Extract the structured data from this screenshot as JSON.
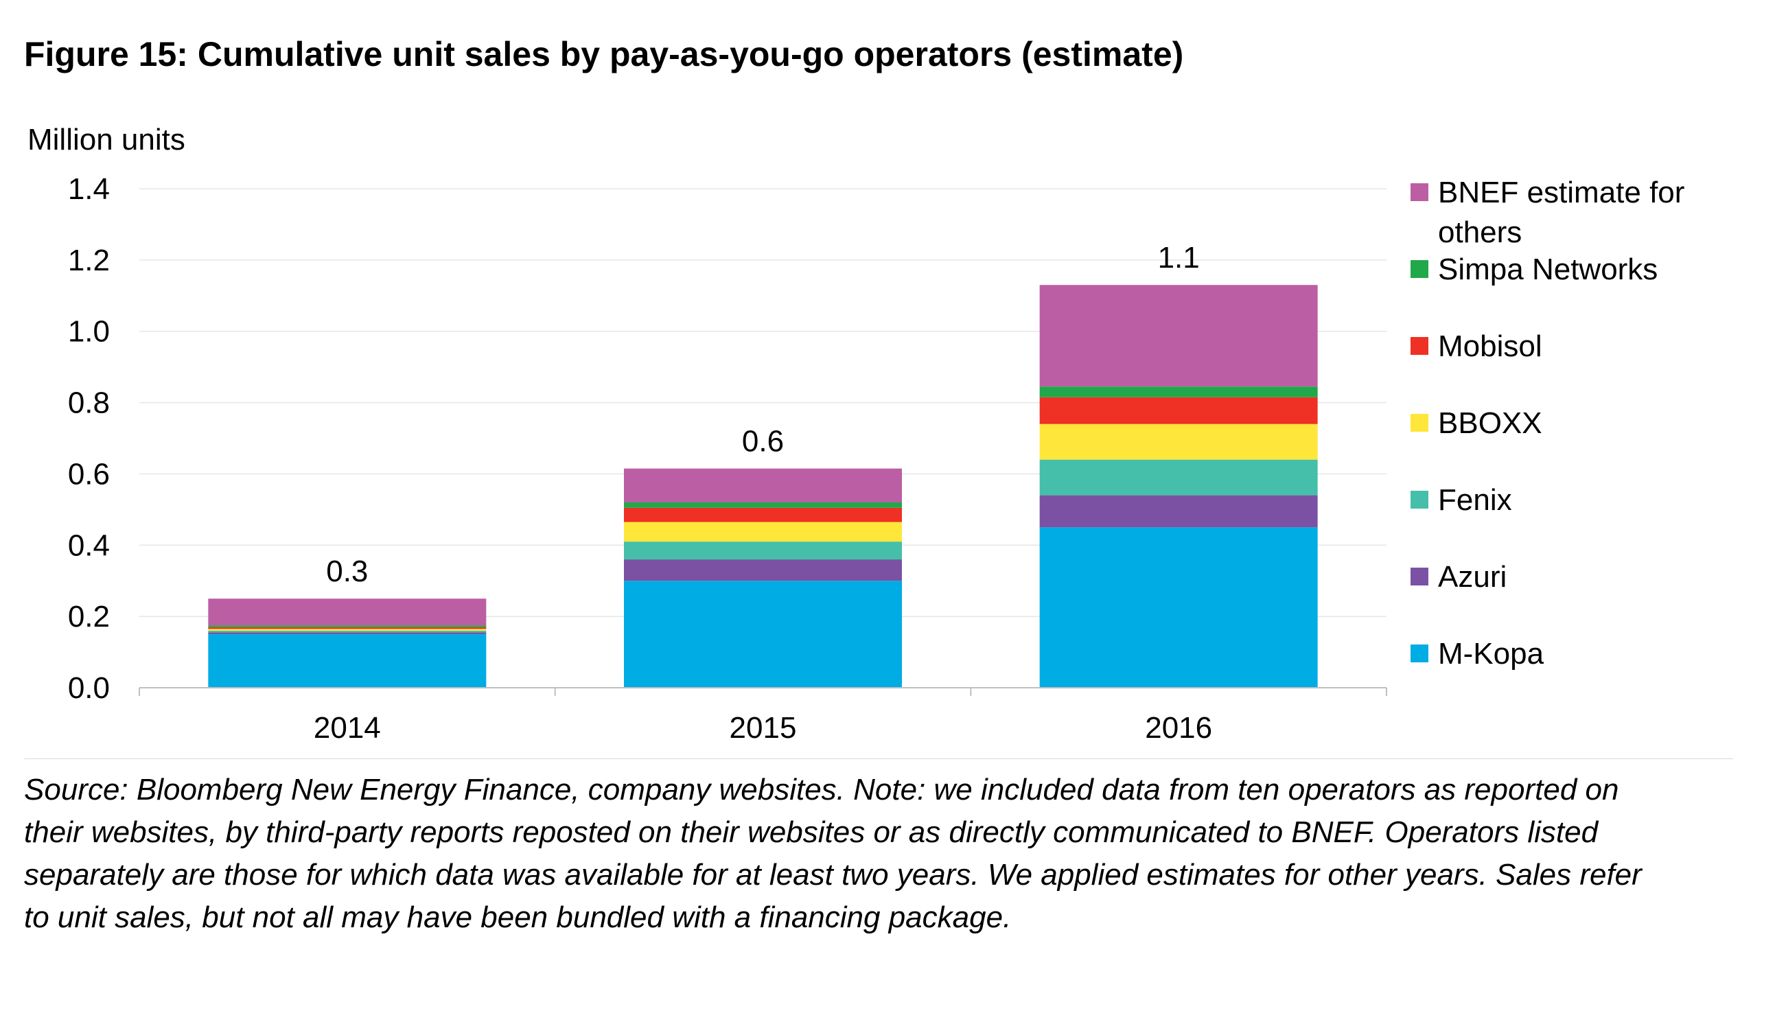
{
  "title": "Figure 15: Cumulative unit sales by pay-as-you-go operators (estimate)",
  "source": "Source: Bloomberg New Energy Finance, company websites. Note: we included data from ten operators as reported on their websites, by third-party reports reposted on their websites or as directly communicated to BNEF. Operators listed separately are those for which data was available for at least two years. We applied estimates for other years. Sales refer to unit sales, but not all may have been bundled with a financing package.",
  "chart_data": {
    "type": "bar",
    "stacked": true,
    "ylabel": "Million units",
    "ylim": [
      0,
      1.4
    ],
    "yticks": [
      "0.0",
      "0.2",
      "0.4",
      "0.6",
      "0.8",
      "1.0",
      "1.2",
      "1.4"
    ],
    "ytick_values": [
      0,
      0.2,
      0.4,
      0.6,
      0.8,
      1.0,
      1.2,
      1.4
    ],
    "grid": true,
    "legend": "right",
    "categories": [
      "2014",
      "2015",
      "2016"
    ],
    "totals_labels": [
      "0.3",
      "0.6",
      "1.1"
    ],
    "series": [
      {
        "name": "M-Kopa",
        "color": "#00ACE4",
        "values": [
          0.15,
          0.3,
          0.45
        ]
      },
      {
        "name": "Azuri",
        "color": "#7B52A3",
        "values": [
          0.005,
          0.06,
          0.09
        ]
      },
      {
        "name": "Fenix",
        "color": "#45BFAA",
        "values": [
          0.005,
          0.05,
          0.1
        ]
      },
      {
        "name": "BBOXX",
        "color": "#FFE63A",
        "values": [
          0.005,
          0.055,
          0.1
        ]
      },
      {
        "name": "Mobisol",
        "color": "#EE3124",
        "values": [
          0.005,
          0.04,
          0.075
        ]
      },
      {
        "name": "Simpa Networks",
        "color": "#20A84A",
        "values": [
          0.005,
          0.015,
          0.03
        ]
      },
      {
        "name": "BNEF estimate for others",
        "color": "#BC5EA4",
        "values": [
          0.075,
          0.095,
          0.285
        ]
      }
    ]
  }
}
